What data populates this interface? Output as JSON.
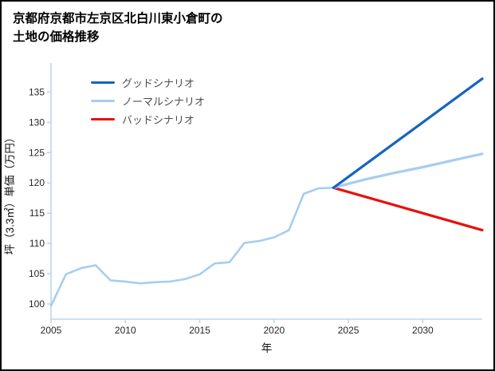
{
  "title": {
    "line1": "京都府京都市左京区北白川東小倉町の",
    "line2": "土地の価格推移"
  },
  "chart_data": {
    "type": "line",
    "title": "京都府京都市左京区北白川東小倉町の土地の価格推移",
    "xlabel": "年",
    "ylabel": "坪（3.3㎡）単価（万円）",
    "xlim": [
      2005,
      2034
    ],
    "ylim": [
      97.5,
      139
    ],
    "xticks": [
      2005,
      2010,
      2015,
      2020,
      2025,
      2030
    ],
    "yticks": [
      100,
      105,
      110,
      115,
      120,
      125,
      130,
      135
    ],
    "grid": false,
    "legend_position": "upper-left",
    "axis_color": "#b8d7f2",
    "tick_label_color": "#262626",
    "series": [
      {
        "name": "グッドシナリオ",
        "color": "#1565c0",
        "width": 3.2,
        "in_legend": true,
        "x": [
          2024,
          2034
        ],
        "y": [
          119.2,
          137.2
        ]
      },
      {
        "name": "ノーマルシナリオ",
        "color": "#a6cdf1",
        "width": 3.2,
        "in_legend": true,
        "x": [
          2024,
          2026,
          2028,
          2030,
          2032,
          2034
        ],
        "y": [
          119.2,
          120.5,
          121.6,
          122.6,
          123.7,
          124.8
        ]
      },
      {
        "name": "バッドシナリオ",
        "color": "#e8100c",
        "width": 3.2,
        "in_legend": true,
        "x": [
          2024,
          2034
        ],
        "y": [
          119.2,
          112.2
        ]
      },
      {
        "name": "",
        "id": "history",
        "color": "#a6cdf1",
        "width": 2.6,
        "in_legend": false,
        "x": [
          2005,
          2006,
          2007,
          2008,
          2009,
          2010,
          2011,
          2012,
          2013,
          2014,
          2015,
          2016,
          2017,
          2018,
          2019,
          2020,
          2021,
          2022,
          2023,
          2024
        ],
        "y": [
          99.7,
          104.9,
          105.9,
          106.4,
          103.9,
          103.7,
          103.4,
          103.6,
          103.7,
          104.1,
          104.9,
          106.7,
          106.9,
          110.1,
          110.4,
          111.0,
          112.2,
          118.2,
          119.1,
          119.2
        ]
      }
    ]
  }
}
